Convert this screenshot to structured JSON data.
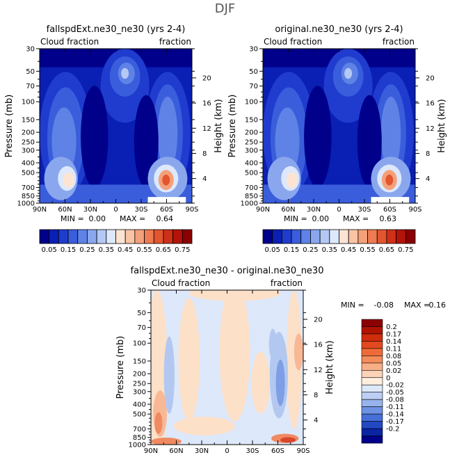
{
  "title": "DJF",
  "panels": [
    {
      "title": "fallspdExt.ne30_ne30 (yrs 2-4)",
      "left_label": "Cloud fraction",
      "right_label": "fraction",
      "y_label": "Pressure (mb)",
      "y2_label": "Height (km)",
      "min_label": "MIN =",
      "min_value": "0.00",
      "max_label": "MAX =",
      "max_value": "0.64"
    },
    {
      "title": "original.ne30_ne30 (yrs 2-4)",
      "left_label": "Cloud fraction",
      "right_label": "fraction",
      "y_label": "Pressure (mb)",
      "y2_label": "Height (km)",
      "min_label": "MIN =",
      "min_value": "0.00",
      "max_label": "MAX =",
      "max_value": "0.63"
    },
    {
      "title": "fallspdExt.ne30_ne30 - original.ne30_ne30",
      "left_label": "Cloud fraction",
      "right_label": "fraction",
      "y_label": "Pressure (mb)",
      "y2_label": "Height (km)",
      "min_label": "MIN =",
      "min_value": "-0.08",
      "max_label": "MAX =",
      "max_value": "0.16"
    }
  ],
  "chart_data": [
    {
      "type": "heatmap",
      "title": "fallspdExt.ne30_ne30 (yrs 2-4)",
      "xlabel": "",
      "ylabel": "Pressure (mb)",
      "y2label": "Height (km)",
      "x_ticks": [
        "90N",
        "60N",
        "30N",
        "0",
        "30S",
        "60S",
        "90S"
      ],
      "y_ticks": [
        "30",
        "50",
        "70",
        "100",
        "150",
        "200",
        "250",
        "300",
        "400",
        "500",
        "700",
        "850",
        "1000"
      ],
      "y2_ticks": [
        "20",
        "16",
        "12",
        "8",
        "4"
      ],
      "xlim": [
        90,
        -90
      ],
      "ylim": [
        1000,
        30
      ],
      "min": 0.0,
      "max": 0.64
    },
    {
      "type": "heatmap",
      "title": "original.ne30_ne30 (yrs 2-4)",
      "xlabel": "",
      "ylabel": "Pressure (mb)",
      "y2label": "Height (km)",
      "x_ticks": [
        "90N",
        "60N",
        "30N",
        "0",
        "30S",
        "60S",
        "90S"
      ],
      "y_ticks": [
        "30",
        "50",
        "70",
        "100",
        "150",
        "200",
        "250",
        "300",
        "400",
        "500",
        "700",
        "850",
        "1000"
      ],
      "y2_ticks": [
        "20",
        "16",
        "12",
        "8",
        "4"
      ],
      "xlim": [
        90,
        -90
      ],
      "ylim": [
        1000,
        30
      ],
      "min": 0.0,
      "max": 0.63
    },
    {
      "type": "heatmap",
      "title": "fallspdExt.ne30_ne30 - original.ne30_ne30",
      "xlabel": "",
      "ylabel": "Pressure (mb)",
      "y2label": "Height (km)",
      "x_ticks": [
        "90N",
        "60N",
        "30N",
        "0",
        "30S",
        "60S",
        "90S"
      ],
      "y_ticks": [
        "30",
        "50",
        "70",
        "100",
        "150",
        "200",
        "250",
        "300",
        "400",
        "500",
        "700",
        "850",
        "1000"
      ],
      "y2_ticks": [
        "20",
        "16",
        "12",
        "8",
        "4"
      ],
      "xlim": [
        90,
        -90
      ],
      "ylim": [
        1000,
        30
      ],
      "min": -0.08,
      "max": 0.16
    }
  ],
  "colorbar_main": {
    "labels": [
      "0.05",
      "0.15",
      "0.25",
      "0.35",
      "0.45",
      "0.55",
      "0.65",
      "0.75"
    ],
    "colors": [
      "#00008b",
      "#0a1fb3",
      "#1f3ccf",
      "#3a5ddc",
      "#5f82e6",
      "#8aa7ee",
      "#b3c8f5",
      "#dde8fc",
      "#fde4d2",
      "#f9c3a4",
      "#f4a07a",
      "#ee7b52",
      "#e3552f",
      "#cf3018",
      "#b4130a",
      "#8b0000"
    ]
  },
  "colorbar_diff": {
    "labels": [
      "0.2",
      "0.17",
      "0.14",
      "0.11",
      "0.08",
      "0.05",
      "0.02",
      "0",
      "-0.02",
      "-0.05",
      "-0.08",
      "-0.11",
      "-0.14",
      "-0.17",
      "-0.2"
    ],
    "colors": [
      "#8b0000",
      "#b01300",
      "#cf2d0c",
      "#e3481f",
      "#ef6a38",
      "#f48c5a",
      "#f8ae86",
      "#fcd3b9",
      "#ffeede",
      "#dde8fa",
      "#bccef3",
      "#97b3ec",
      "#6d92e3",
      "#466fd8",
      "#2248c4",
      "#0a24a4",
      "#00008b"
    ]
  },
  "field_colors": {
    "deep": "#00008b",
    "c1": "#0a1fb3",
    "c2": "#1f3ccf",
    "c3": "#3a5ddc",
    "c4": "#5f82e6",
    "c5": "#8aa7ee",
    "c6": "#b3c8f5",
    "c7": "#dde8fc",
    "warm1": "#fde4d2",
    "warm2": "#f4a07a",
    "warm3": "#e3552f"
  },
  "diff_colors": {
    "pos1": "#fde0c8",
    "pos2": "#f8b896",
    "pos3": "#ef8a62",
    "pos4": "#d8472b",
    "neg1": "#dde8fa",
    "neg2": "#b3c8f0",
    "neg3": "#7e9fe6"
  }
}
